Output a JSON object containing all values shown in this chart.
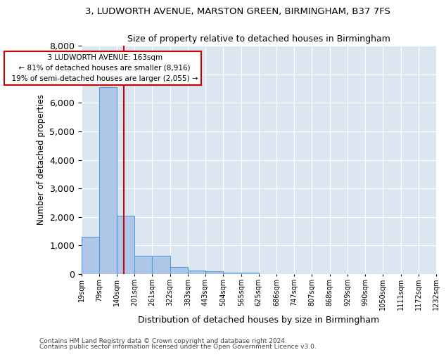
{
  "title1": "3, LUDWORTH AVENUE, MARSTON GREEN, BIRMINGHAM, B37 7FS",
  "title2": "Size of property relative to detached houses in Birmingham",
  "xlabel": "Distribution of detached houses by size in Birmingham",
  "ylabel": "Number of detached properties",
  "footer1": "Contains HM Land Registry data © Crown copyright and database right 2024.",
  "footer2": "Contains public sector information licensed under the Open Government Licence v3.0.",
  "annotation_title": "3 LUDWORTH AVENUE: 163sqm",
  "annotation_line1": "← 81% of detached houses are smaller (8,916)",
  "annotation_line2": "19% of semi-detached houses are larger (2,055) →",
  "property_size": 163,
  "bin_edges": [
    19,
    79,
    140,
    201,
    261,
    322,
    383,
    443,
    504,
    565,
    625,
    686,
    747,
    807,
    868,
    929,
    990,
    1050,
    1111,
    1172,
    1232
  ],
  "bar_values": [
    1300,
    6550,
    2055,
    640,
    640,
    240,
    120,
    90,
    55,
    55,
    0,
    0,
    0,
    0,
    0,
    0,
    0,
    0,
    0,
    0
  ],
  "bar_color": "#aec6e8",
  "bar_edge_color": "#5b9bd5",
  "vline_color": "#cc0000",
  "vline_x": 163,
  "annotation_box_color": "#cc0000",
  "plot_bg_color": "#dce6f1",
  "ylim": [
    0,
    8000
  ],
  "yticks": [
    0,
    1000,
    2000,
    3000,
    4000,
    5000,
    6000,
    7000,
    8000
  ]
}
